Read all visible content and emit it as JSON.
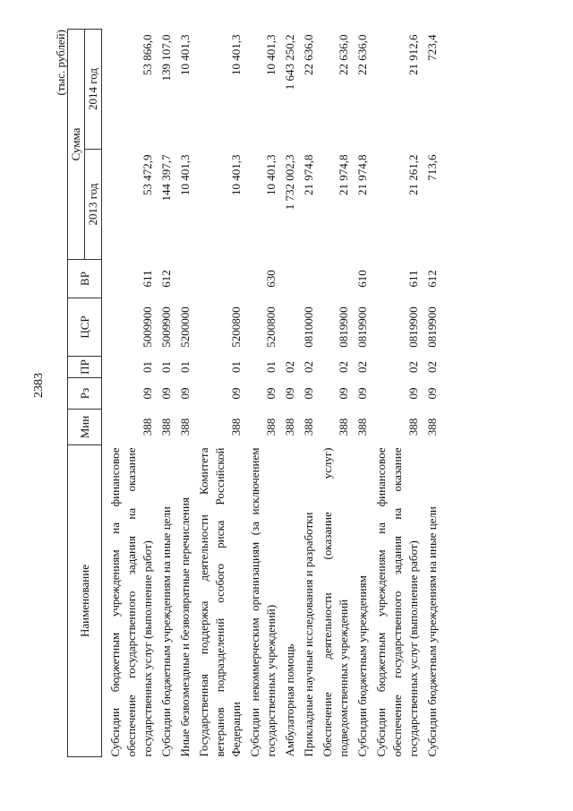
{
  "page_number": "2383",
  "units": "(тыс. рублей)",
  "headers": {
    "name": "Наименование",
    "min": "Мин",
    "rz": "Рз",
    "pr": "ПР",
    "csr": "ЦСР",
    "vr": "ВР",
    "sum": "Сумма",
    "y2013": "2013 год",
    "y2014": "2014 год"
  },
  "rows": [
    {
      "name": "Субсидии бюджетным учреждениям на финансовое обеспечение государственного задания на оказание государственных услуг (выполнение работ)",
      "min": "388",
      "rz": "09",
      "pr": "01",
      "csr": "5009900",
      "vr": "611",
      "y2013": "53 472,9",
      "y2014": "53 866,0"
    },
    {
      "name": "Субсидии бюджетным учреждениям на иные цели",
      "min": "388",
      "rz": "09",
      "pr": "01",
      "csr": "5009900",
      "vr": "612",
      "y2013": "144 397,7",
      "y2014": "139 107,0"
    },
    {
      "name": "Иные безвозмездные и безвозвратные перечисления",
      "min": "388",
      "rz": "09",
      "pr": "01",
      "csr": "5200000",
      "vr": "",
      "y2013": "10 401,3",
      "y2014": "10 401,3"
    },
    {
      "name": "Государственная поддержка деятельности Комитета ветеранов подразделений особого риска Российской Федерации",
      "min": "388",
      "rz": "09",
      "pr": "01",
      "csr": "5200800",
      "vr": "",
      "y2013": "10 401,3",
      "y2014": "10 401,3"
    },
    {
      "name": "Субсидии некоммерческим организациям (за исключением государственных учреждений)",
      "min": "388",
      "rz": "09",
      "pr": "01",
      "csr": "5200800",
      "vr": "630",
      "y2013": "10 401,3",
      "y2014": "10 401,3"
    },
    {
      "name": "Амбулаторная помощь",
      "min": "388",
      "rz": "09",
      "pr": "02",
      "csr": "",
      "vr": "",
      "y2013": "1 732 002,3",
      "y2014": "1 643 250,2"
    },
    {
      "name": "Прикладные научные исследования и разработки",
      "min": "388",
      "rz": "09",
      "pr": "02",
      "csr": "0810000",
      "vr": "",
      "y2013": "21 974,8",
      "y2014": "22 636,0"
    },
    {
      "name": "Обеспечение деятельности (оказание услуг) подведомственных учреждений",
      "min": "388",
      "rz": "09",
      "pr": "02",
      "csr": "0819900",
      "vr": "",
      "y2013": "21 974,8",
      "y2014": "22 636,0"
    },
    {
      "name": "Субсидии бюджетным учреждениям",
      "min": "388",
      "rz": "09",
      "pr": "02",
      "csr": "0819900",
      "vr": "610",
      "y2013": "21 974,8",
      "y2014": "22 636,0"
    },
    {
      "name": "Субсидии бюджетным учреждениям на финансовое обеспечение государственного задания на оказание государственных услуг (выполнение работ)",
      "min": "388",
      "rz": "09",
      "pr": "02",
      "csr": "0819900",
      "vr": "611",
      "y2013": "21 261,2",
      "y2014": "21 912,6"
    },
    {
      "name": "Субсидии бюджетным учреждениям на иные цели",
      "min": "388",
      "rz": "09",
      "pr": "02",
      "csr": "0819900",
      "vr": "612",
      "y2013": "713,6",
      "y2014": "723,4"
    }
  ]
}
